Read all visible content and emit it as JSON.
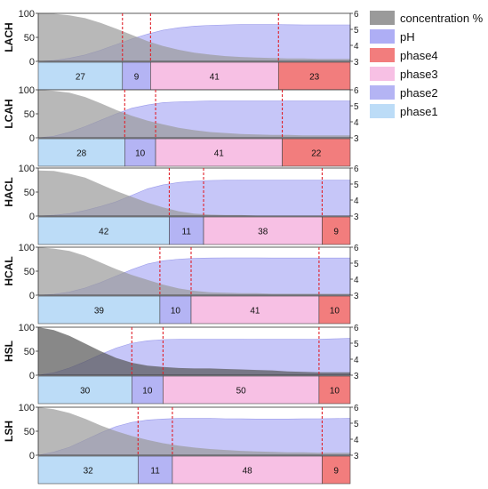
{
  "colors": {
    "concentration": "#9a9a9a",
    "concentration_dark": "#555555",
    "ph": "#aeaef5",
    "phase1": "#bcdcf7",
    "phase2": "#b4b4f4",
    "phase3": "#f7c0e4",
    "phase4": "#f27d7d",
    "boundary": "#e0202a"
  },
  "legend": [
    {
      "key": "concentration",
      "label": "concentration %"
    },
    {
      "key": "ph",
      "label": "pH"
    },
    {
      "key": "phase4",
      "label": "phase4"
    },
    {
      "key": "phase3",
      "label": "phase3"
    },
    {
      "key": "phase2",
      "label": "phase2"
    },
    {
      "key": "phase1",
      "label": "phase1"
    }
  ],
  "chart_data": [
    {
      "type": "area",
      "label": "LACH",
      "left_axis": {
        "ylim": [
          0,
          100
        ],
        "ticks": [
          "100",
          "50",
          "0"
        ]
      },
      "right_axis": {
        "ylim": [
          3,
          6
        ],
        "ticks": [
          "6",
          "5",
          "4",
          "3"
        ]
      },
      "x": [
        0,
        5,
        10,
        15,
        20,
        25,
        30,
        35,
        40,
        45,
        50,
        55,
        60,
        65,
        70,
        75,
        80,
        85,
        90,
        95,
        100
      ],
      "concentration": [
        100,
        99,
        96,
        90,
        80,
        68,
        55,
        42,
        32,
        24,
        18,
        14,
        11,
        9,
        8,
        7,
        6,
        6,
        5,
        5,
        5
      ],
      "ph": [
        3,
        3.05,
        3.2,
        3.4,
        3.7,
        4.05,
        4.4,
        4.7,
        4.95,
        5.1,
        5.2,
        5.25,
        5.28,
        5.3,
        5.3,
        5.3,
        5.29,
        5.28,
        5.28,
        5.28,
        5.28
      ],
      "phases": [
        {
          "name": "phase1",
          "value": 27
        },
        {
          "name": "phase2",
          "value": 9
        },
        {
          "name": "phase3",
          "value": 41
        },
        {
          "name": "phase4",
          "value": 23
        }
      ]
    },
    {
      "type": "area",
      "label": "LCAH",
      "left_axis": {
        "ylim": [
          0,
          100
        ],
        "ticks": [
          "100",
          "50",
          "0"
        ]
      },
      "right_axis": {
        "ylim": [
          3,
          6
        ],
        "ticks": [
          "6",
          "5",
          "4",
          "3"
        ]
      },
      "x": [
        0,
        5,
        10,
        15,
        20,
        25,
        30,
        35,
        40,
        45,
        50,
        55,
        60,
        65,
        70,
        75,
        80,
        85,
        90,
        95,
        100
      ],
      "concentration": [
        100,
        98,
        94,
        85,
        72,
        58,
        46,
        36,
        28,
        21,
        16,
        12,
        10,
        8,
        7,
        6,
        6,
        5,
        5,
        5,
        5
      ],
      "ph": [
        3,
        3.1,
        3.35,
        3.7,
        4.1,
        4.5,
        4.85,
        5.05,
        5.2,
        5.25,
        5.28,
        5.3,
        5.3,
        5.3,
        5.3,
        5.3,
        5.3,
        5.3,
        5.3,
        5.3,
        5.3
      ],
      "phases": [
        {
          "name": "phase1",
          "value": 28
        },
        {
          "name": "phase2",
          "value": 10
        },
        {
          "name": "phase3",
          "value": 41
        },
        {
          "name": "phase4",
          "value": 22
        }
      ]
    },
    {
      "type": "area",
      "label": "HACL",
      "left_axis": {
        "ylim": [
          0,
          100
        ],
        "ticks": [
          "100",
          "50",
          "0"
        ]
      },
      "right_axis": {
        "ylim": [
          3,
          6
        ],
        "ticks": [
          "6",
          "5",
          "4",
          "3"
        ]
      },
      "x": [
        0,
        5,
        10,
        15,
        20,
        25,
        30,
        35,
        40,
        45,
        50,
        55,
        60,
        65,
        70,
        75,
        80,
        85,
        90,
        95,
        100
      ],
      "concentration": [
        95,
        94,
        88,
        80,
        66,
        52,
        40,
        28,
        18,
        10,
        5,
        3,
        2,
        2,
        1,
        1,
        1,
        1,
        1,
        1,
        1
      ],
      "ph": [
        3,
        3.05,
        3.15,
        3.35,
        3.6,
        3.9,
        4.3,
        4.7,
        4.95,
        5.1,
        5.18,
        5.22,
        5.24,
        5.25,
        5.25,
        5.25,
        5.25,
        5.25,
        5.25,
        5.25,
        5.25
      ],
      "phases": [
        {
          "name": "phase1",
          "value": 42
        },
        {
          "name": "phase2",
          "value": 11
        },
        {
          "name": "phase3",
          "value": 38
        },
        {
          "name": "phase4",
          "value": 9
        }
      ]
    },
    {
      "type": "area",
      "label": "HCAL",
      "left_axis": {
        "ylim": [
          0,
          100
        ],
        "ticks": [
          "100",
          "50",
          "0"
        ]
      },
      "right_axis": {
        "ylim": [
          3,
          6
        ],
        "ticks": [
          "6",
          "5",
          "4",
          "3"
        ]
      },
      "x": [
        0,
        5,
        10,
        15,
        20,
        25,
        30,
        35,
        40,
        45,
        50,
        55,
        60,
        65,
        70,
        75,
        80,
        85,
        90,
        95,
        100
      ],
      "concentration": [
        100,
        97,
        92,
        82,
        68,
        54,
        42,
        32,
        22,
        14,
        9,
        6,
        5,
        4,
        4,
        3,
        3,
        3,
        3,
        3,
        3
      ],
      "ph": [
        3,
        3.05,
        3.2,
        3.45,
        3.8,
        4.2,
        4.6,
        4.95,
        5.15,
        5.25,
        5.3,
        5.32,
        5.33,
        5.33,
        5.33,
        5.32,
        5.32,
        5.32,
        5.32,
        5.32,
        5.32
      ],
      "phases": [
        {
          "name": "phase1",
          "value": 39
        },
        {
          "name": "phase2",
          "value": 10
        },
        {
          "name": "phase3",
          "value": 41
        },
        {
          "name": "phase4",
          "value": 10
        }
      ]
    },
    {
      "type": "area",
      "label": "HSL",
      "left_axis": {
        "ylim": [
          0,
          100
        ],
        "ticks": [
          "100",
          "50",
          "0"
        ]
      },
      "right_axis": {
        "ylim": [
          3,
          6
        ],
        "ticks": [
          "6",
          "5",
          "4",
          "3"
        ]
      },
      "x": [
        0,
        5,
        10,
        15,
        20,
        25,
        30,
        35,
        40,
        45,
        50,
        55,
        60,
        65,
        70,
        75,
        80,
        85,
        90,
        95,
        100
      ],
      "concentration": [
        100,
        94,
        82,
        66,
        50,
        36,
        26,
        20,
        17,
        15,
        14,
        14,
        13,
        12,
        11,
        10,
        8,
        7,
        6,
        6,
        6
      ],
      "ph": [
        3,
        3.15,
        3.45,
        3.85,
        4.3,
        4.7,
        5.0,
        5.15,
        5.22,
        5.25,
        5.25,
        5.25,
        5.25,
        5.25,
        5.24,
        5.24,
        5.24,
        5.24,
        5.25,
        5.27,
        5.3
      ],
      "phases": [
        {
          "name": "phase1",
          "value": 30
        },
        {
          "name": "phase2",
          "value": 10
        },
        {
          "name": "phase3",
          "value": 50
        },
        {
          "name": "phase4",
          "value": 10
        }
      ]
    },
    {
      "type": "area",
      "label": "LSH",
      "left_axis": {
        "ylim": [
          0,
          100
        ],
        "ticks": [
          "100",
          "50",
          "0"
        ]
      },
      "right_axis": {
        "ylim": [
          3,
          6
        ],
        "ticks": [
          "6",
          "5",
          "4",
          "3"
        ]
      },
      "x": [
        0,
        5,
        10,
        15,
        20,
        25,
        30,
        35,
        40,
        45,
        50,
        55,
        60,
        65,
        70,
        75,
        80,
        85,
        90,
        95,
        100
      ],
      "concentration": [
        100,
        96,
        88,
        76,
        62,
        50,
        40,
        32,
        25,
        20,
        16,
        13,
        11,
        9,
        8,
        7,
        6,
        6,
        5,
        5,
        5
      ],
      "ph": [
        3,
        3.2,
        3.5,
        3.95,
        4.4,
        4.8,
        5.05,
        5.2,
        5.26,
        5.3,
        5.3,
        5.3,
        5.28,
        5.27,
        5.26,
        5.26,
        5.26,
        5.27,
        5.28,
        5.29,
        5.3
      ],
      "phases": [
        {
          "name": "phase1",
          "value": 32
        },
        {
          "name": "phase2",
          "value": 11
        },
        {
          "name": "phase3",
          "value": 48
        },
        {
          "name": "phase4",
          "value": 9
        }
      ]
    }
  ]
}
